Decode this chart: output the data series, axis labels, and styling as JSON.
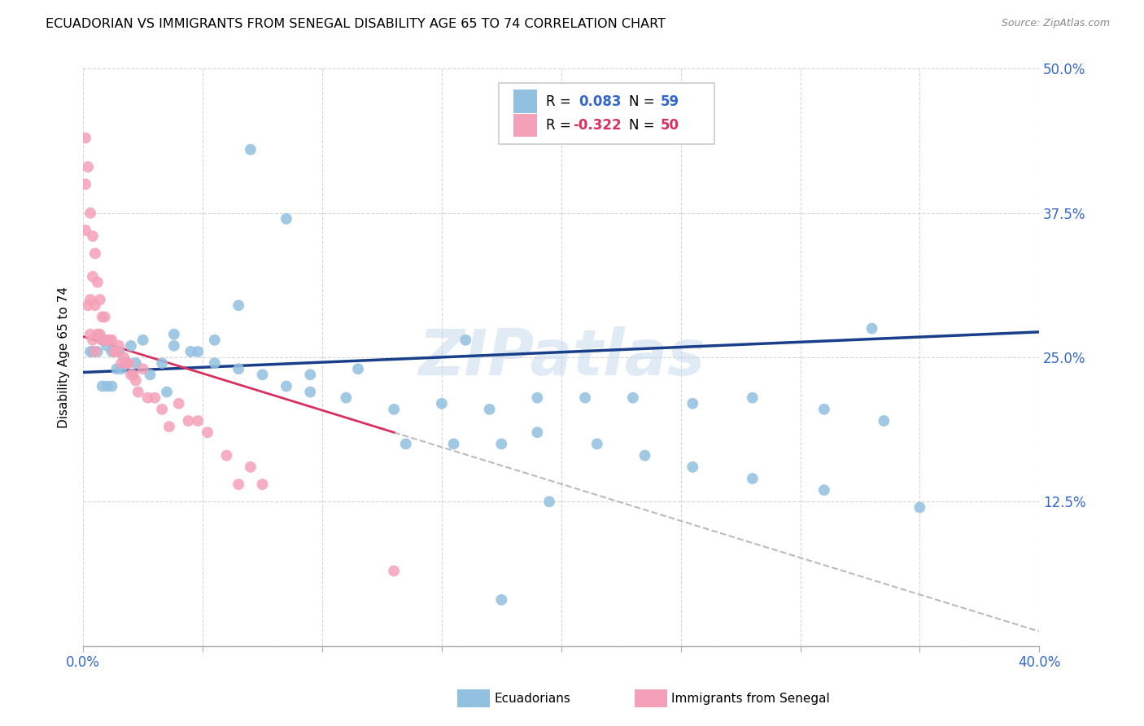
{
  "title": "ECUADORIAN VS IMMIGRANTS FROM SENEGAL DISABILITY AGE 65 TO 74 CORRELATION CHART",
  "source": "Source: ZipAtlas.com",
  "ylabel": "Disability Age 65 to 74",
  "xlim": [
    0.0,
    0.4
  ],
  "ylim": [
    0.0,
    0.5
  ],
  "r_blue": 0.083,
  "n_blue": 59,
  "r_pink": -0.322,
  "n_pink": 50,
  "blue_color": "#92C0E0",
  "pink_color": "#F4A0B8",
  "blue_line_color": "#1A3F8A",
  "pink_line_color": "#D93060",
  "label_color": "#3366CC",
  "watermark": "ZIPatlas",
  "blue_line_x0": 0.0,
  "blue_line_y0": 0.237,
  "blue_line_x1": 0.4,
  "blue_line_y1": 0.272,
  "pink_line_x0": 0.0,
  "pink_line_y0": 0.268,
  "pink_line_x1": 0.13,
  "pink_line_y1": 0.185,
  "blue_points_x": [
    0.33,
    0.16,
    0.07,
    0.085,
    0.065,
    0.055,
    0.048,
    0.038,
    0.033,
    0.025,
    0.02,
    0.015,
    0.012,
    0.01,
    0.008,
    0.006,
    0.004,
    0.003,
    0.035,
    0.028,
    0.022,
    0.018,
    0.016,
    0.014,
    0.012,
    0.01,
    0.008,
    0.038,
    0.045,
    0.055,
    0.065,
    0.075,
    0.085,
    0.095,
    0.11,
    0.13,
    0.15,
    0.17,
    0.19,
    0.21,
    0.23,
    0.255,
    0.28,
    0.31,
    0.335,
    0.19,
    0.215,
    0.235,
    0.255,
    0.28,
    0.31,
    0.35,
    0.095,
    0.115,
    0.135,
    0.155,
    0.175,
    0.195,
    0.175
  ],
  "blue_points_y": [
    0.275,
    0.265,
    0.43,
    0.37,
    0.295,
    0.265,
    0.255,
    0.27,
    0.245,
    0.265,
    0.26,
    0.255,
    0.255,
    0.26,
    0.265,
    0.255,
    0.255,
    0.255,
    0.22,
    0.235,
    0.245,
    0.245,
    0.24,
    0.24,
    0.225,
    0.225,
    0.225,
    0.26,
    0.255,
    0.245,
    0.24,
    0.235,
    0.225,
    0.22,
    0.215,
    0.205,
    0.21,
    0.205,
    0.215,
    0.215,
    0.215,
    0.21,
    0.215,
    0.205,
    0.195,
    0.185,
    0.175,
    0.165,
    0.155,
    0.145,
    0.135,
    0.12,
    0.235,
    0.24,
    0.175,
    0.175,
    0.175,
    0.125,
    0.04
  ],
  "pink_points_x": [
    0.001,
    0.001,
    0.001,
    0.002,
    0.002,
    0.003,
    0.003,
    0.003,
    0.004,
    0.004,
    0.004,
    0.005,
    0.005,
    0.005,
    0.006,
    0.006,
    0.007,
    0.007,
    0.008,
    0.008,
    0.009,
    0.009,
    0.01,
    0.011,
    0.012,
    0.013,
    0.014,
    0.015,
    0.016,
    0.017,
    0.018,
    0.019,
    0.02,
    0.021,
    0.022,
    0.023,
    0.025,
    0.027,
    0.03,
    0.033,
    0.036,
    0.04,
    0.044,
    0.048,
    0.052,
    0.06,
    0.065,
    0.07,
    0.075,
    0.13
  ],
  "pink_points_y": [
    0.44,
    0.4,
    0.36,
    0.415,
    0.295,
    0.375,
    0.3,
    0.27,
    0.355,
    0.32,
    0.265,
    0.34,
    0.295,
    0.255,
    0.315,
    0.27,
    0.3,
    0.27,
    0.285,
    0.265,
    0.285,
    0.265,
    0.265,
    0.265,
    0.265,
    0.255,
    0.255,
    0.26,
    0.245,
    0.25,
    0.245,
    0.245,
    0.235,
    0.235,
    0.23,
    0.22,
    0.24,
    0.215,
    0.215,
    0.205,
    0.19,
    0.21,
    0.195,
    0.195,
    0.185,
    0.165,
    0.14,
    0.155,
    0.14,
    0.065
  ]
}
